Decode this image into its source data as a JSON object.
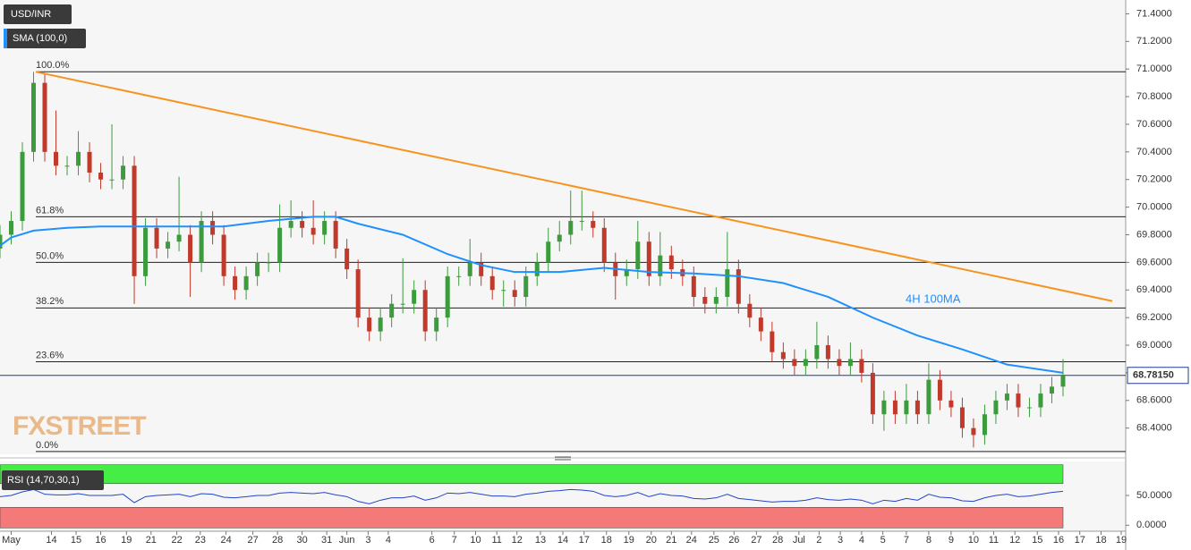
{
  "chart_data": {
    "type": "candlestick",
    "title": "USD/INR",
    "up_color": "#3c9b3c",
    "down_color": "#c0392b",
    "xlim": [
      0,
      100.6
    ],
    "xticks": [
      {
        "value": 1.0,
        "label": "May"
      },
      {
        "value": 4.6,
        "label": "14"
      },
      {
        "value": 6.8,
        "label": "15"
      },
      {
        "value": 9.0,
        "label": "16"
      },
      {
        "value": 11.3,
        "label": "19"
      },
      {
        "value": 13.5,
        "label": "21"
      },
      {
        "value": 15.8,
        "label": "22"
      },
      {
        "value": 17.9,
        "label": "23"
      },
      {
        "value": 20.2,
        "label": "24"
      },
      {
        "value": 22.6,
        "label": "27"
      },
      {
        "value": 24.8,
        "label": "28"
      },
      {
        "value": 27.0,
        "label": "30"
      },
      {
        "value": 29.2,
        "label": "31"
      },
      {
        "value": 31.0,
        "label": "Jun"
      },
      {
        "value": 32.9,
        "label": "3"
      },
      {
        "value": 34.7,
        "label": "4"
      },
      {
        "value": 38.6,
        "label": "6"
      },
      {
        "value": 40.6,
        "label": "7"
      },
      {
        "value": 42.5,
        "label": "10"
      },
      {
        "value": 44.4,
        "label": "11"
      },
      {
        "value": 46.2,
        "label": "12"
      },
      {
        "value": 48.3,
        "label": "13"
      },
      {
        "value": 50.3,
        "label": "14"
      },
      {
        "value": 52.2,
        "label": "17"
      },
      {
        "value": 54.2,
        "label": "18"
      },
      {
        "value": 56.2,
        "label": "19"
      },
      {
        "value": 58.2,
        "label": "20"
      },
      {
        "value": 60.0,
        "label": "21"
      },
      {
        "value": 61.8,
        "label": "24"
      },
      {
        "value": 63.8,
        "label": "25"
      },
      {
        "value": 65.6,
        "label": "26"
      },
      {
        "value": 67.6,
        "label": "27"
      },
      {
        "value": 69.5,
        "label": "28"
      },
      {
        "value": 71.4,
        "label": "Jul"
      },
      {
        "value": 73.2,
        "label": "2"
      },
      {
        "value": 75.1,
        "label": "3"
      },
      {
        "value": 77.0,
        "label": "4"
      },
      {
        "value": 78.9,
        "label": "5"
      },
      {
        "value": 81.0,
        "label": "7"
      },
      {
        "value": 83.0,
        "label": "8"
      },
      {
        "value": 85.0,
        "label": "9"
      },
      {
        "value": 87.0,
        "label": "10"
      },
      {
        "value": 88.8,
        "label": "11"
      },
      {
        "value": 90.7,
        "label": "12"
      },
      {
        "value": 92.7,
        "label": "15"
      },
      {
        "value": 94.6,
        "label": "16"
      },
      {
        "value": 96.5,
        "label": "17"
      },
      {
        "value": 98.4,
        "label": "18"
      },
      {
        "value": 100.2,
        "label": "19"
      }
    ],
    "ylim": [
      68.21,
      71.5
    ],
    "yticks": [
      {
        "value": 71.4,
        "label": "71.4000"
      },
      {
        "value": 71.2,
        "label": "71.2000"
      },
      {
        "value": 71.0,
        "label": "71.0000"
      },
      {
        "value": 70.8,
        "label": "70.8000"
      },
      {
        "value": 70.6,
        "label": "70.6000"
      },
      {
        "value": 70.4,
        "label": "70.4000"
      },
      {
        "value": 70.2,
        "label": "70.2000"
      },
      {
        "value": 70.0,
        "label": "70.0000"
      },
      {
        "value": 69.8,
        "label": "69.8000"
      },
      {
        "value": 69.6,
        "label": "69.6000"
      },
      {
        "value": 69.4,
        "label": "69.4000"
      },
      {
        "value": 69.2,
        "label": "69.2000"
      },
      {
        "value": 69.0,
        "label": "69.0000"
      },
      {
        "value": 68.8,
        "label": "68.8000"
      },
      {
        "value": 68.6,
        "label": "68.6000"
      },
      {
        "value": 68.4,
        "label": "68.4000"
      }
    ],
    "last_price": {
      "value": 68.7815,
      "label": "68.78150"
    },
    "open": [
      69.7,
      69.8,
      69.9,
      70.4,
      70.9,
      70.4,
      70.3,
      70.3,
      70.4,
      70.25,
      70.2,
      70.2,
      70.3,
      69.5,
      69.85,
      69.7,
      69.75,
      69.8,
      69.6,
      69.9,
      69.8,
      69.5,
      69.4,
      69.5,
      69.6,
      69.6,
      69.85,
      69.9,
      69.85,
      69.8,
      69.9,
      69.7,
      69.55,
      69.2,
      69.1,
      69.2,
      69.3,
      69.3,
      69.4,
      69.1,
      69.2,
      69.5,
      69.5,
      69.6,
      69.5,
      69.4,
      69.4,
      69.35,
      69.5,
      69.6,
      69.75,
      69.8,
      69.9,
      69.9,
      69.85,
      69.6,
      69.5,
      69.55,
      69.75,
      69.5,
      69.65,
      69.55,
      69.5,
      69.35,
      69.3,
      69.35,
      69.55,
      69.3,
      69.2,
      69.1,
      68.95,
      68.9,
      68.85,
      68.9,
      69.0,
      68.9,
      68.85,
      68.9,
      68.8,
      68.5,
      68.6,
      68.5,
      68.6,
      68.5,
      68.75,
      68.6,
      68.55,
      68.4,
      68.35,
      68.5,
      68.6,
      68.65,
      68.55,
      68.55,
      68.65,
      68.7
    ],
    "high": [
      69.87,
      69.97,
      70.47,
      70.98,
      70.97,
      70.7,
      70.37,
      70.55,
      70.47,
      70.32,
      70.6,
      70.37,
      70.37,
      69.92,
      69.92,
      69.82,
      70.22,
      69.87,
      69.97,
      69.97,
      69.87,
      69.57,
      69.57,
      69.67,
      69.67,
      70.02,
      70.05,
      69.97,
      70.05,
      69.97,
      69.97,
      69.77,
      69.62,
      69.27,
      69.27,
      69.37,
      69.63,
      69.47,
      69.47,
      69.27,
      69.57,
      69.57,
      69.77,
      69.67,
      69.57,
      69.47,
      69.47,
      69.57,
      69.67,
      69.85,
      69.9,
      70.12,
      70.12,
      69.97,
      69.92,
      69.67,
      69.62,
      69.9,
      69.82,
      69.82,
      69.72,
      69.62,
      69.57,
      69.42,
      69.42,
      69.82,
      69.62,
      69.37,
      69.27,
      69.17,
      69.02,
      68.97,
      68.97,
      69.17,
      69.07,
      68.97,
      69.02,
      68.97,
      68.87,
      68.67,
      68.67,
      68.72,
      68.67,
      68.87,
      68.82,
      68.67,
      68.62,
      68.47,
      68.57,
      68.67,
      68.72,
      68.72,
      68.62,
      68.72,
      68.77,
      68.9
    ],
    "low": [
      69.63,
      69.73,
      69.83,
      70.33,
      70.33,
      70.23,
      70.23,
      70.23,
      70.18,
      70.13,
      70.13,
      70.13,
      69.3,
      69.43,
      69.63,
      69.63,
      69.68,
      69.35,
      69.53,
      69.73,
      69.43,
      69.33,
      69.33,
      69.43,
      69.53,
      69.53,
      69.78,
      69.78,
      69.73,
      69.73,
      69.63,
      69.48,
      69.13,
      69.03,
      69.03,
      69.13,
      69.23,
      69.23,
      69.03,
      69.03,
      69.13,
      69.43,
      69.43,
      69.43,
      69.33,
      69.28,
      69.28,
      69.28,
      69.43,
      69.53,
      69.68,
      69.73,
      69.83,
      69.78,
      69.53,
      69.33,
      69.43,
      69.48,
      69.43,
      69.43,
      69.48,
      69.43,
      69.28,
      69.23,
      69.23,
      69.28,
      69.23,
      69.13,
      69.03,
      68.88,
      68.83,
      68.78,
      68.78,
      68.83,
      68.83,
      68.78,
      68.78,
      68.73,
      68.43,
      68.38,
      68.43,
      68.43,
      68.43,
      68.43,
      68.53,
      68.48,
      68.33,
      68.26,
      68.28,
      68.43,
      68.53,
      68.48,
      68.48,
      68.48,
      68.58,
      68.63
    ],
    "close": [
      69.8,
      69.9,
      70.4,
      70.9,
      70.4,
      70.3,
      70.3,
      70.4,
      70.25,
      70.2,
      70.2,
      70.3,
      69.5,
      69.85,
      69.7,
      69.75,
      69.8,
      69.6,
      69.9,
      69.8,
      69.5,
      69.4,
      69.5,
      69.6,
      69.6,
      69.85,
      69.9,
      69.85,
      69.8,
      69.9,
      69.7,
      69.55,
      69.2,
      69.1,
      69.2,
      69.3,
      69.3,
      69.4,
      69.1,
      69.2,
      69.5,
      69.5,
      69.6,
      69.5,
      69.4,
      69.4,
      69.35,
      69.5,
      69.6,
      69.75,
      69.8,
      69.9,
      69.9,
      69.85,
      69.6,
      69.5,
      69.55,
      69.75,
      69.5,
      69.65,
      69.55,
      69.5,
      69.35,
      69.3,
      69.35,
      69.55,
      69.3,
      69.2,
      69.1,
      68.95,
      68.9,
      68.85,
      68.9,
      69.0,
      68.9,
      68.85,
      68.9,
      68.8,
      68.5,
      68.6,
      68.5,
      68.6,
      68.5,
      68.75,
      68.6,
      68.55,
      68.4,
      68.35,
      68.5,
      68.6,
      68.65,
      68.55,
      68.55,
      68.65,
      68.7,
      68.78
    ],
    "sma": {
      "name": "SMA (100,0)",
      "color": "#1e90ff",
      "x": [
        0,
        1,
        3,
        6,
        9,
        12,
        16,
        20,
        24,
        28,
        30,
        32,
        36,
        40,
        43,
        46,
        50,
        54,
        58,
        62,
        66,
        70,
        74,
        78,
        82,
        86,
        90,
        95
      ],
      "values": [
        69.72,
        69.78,
        69.83,
        69.85,
        69.86,
        69.86,
        69.86,
        69.86,
        69.9,
        69.93,
        69.93,
        69.88,
        69.8,
        69.66,
        69.58,
        69.53,
        69.53,
        69.56,
        69.53,
        69.52,
        69.5,
        69.45,
        69.35,
        69.2,
        69.07,
        68.97,
        68.86,
        68.8
      ]
    },
    "sma_annotation": "4H 100MA",
    "trendline": {
      "color": "#f7931e",
      "x": [
        3.2,
        99.4
      ],
      "values": [
        70.98,
        69.32
      ]
    },
    "fib_start": 3.2,
    "fib_levels": [
      {
        "label": "100.0%",
        "value": 70.98
      },
      {
        "label": "61.8%",
        "value": 69.93
      },
      {
        "label": "50.0%",
        "value": 69.6
      },
      {
        "label": "38.2%",
        "value": 69.27
      },
      {
        "label": "23.6%",
        "value": 68.88
      },
      {
        "label": "0.0%",
        "value": 68.23
      }
    ],
    "watermark": "FXSTREET",
    "rsi": {
      "name": "RSI (14,70,30,1)",
      "color": "#2244cc",
      "overbought": 70,
      "oversold": 30,
      "ylim": [
        -4.5,
        101.5
      ],
      "yticks": [
        {
          "value": 50,
          "label": "50.0000"
        },
        {
          "value": 0,
          "label": "0.0000"
        }
      ],
      "values": [
        48,
        50,
        56,
        60,
        52,
        51,
        51,
        53,
        50,
        50,
        50,
        52,
        38,
        48,
        50,
        51,
        52,
        48,
        53,
        52,
        47,
        46,
        48,
        50,
        50,
        54,
        55,
        54,
        53,
        55,
        51,
        48,
        40,
        36,
        42,
        46,
        46,
        49,
        42,
        46,
        54,
        53,
        55,
        52,
        49,
        49,
        48,
        52,
        54,
        57,
        58,
        60,
        59,
        57,
        50,
        48,
        50,
        55,
        48,
        53,
        50,
        49,
        45,
        44,
        46,
        52,
        45,
        43,
        41,
        39,
        40,
        40,
        42,
        46,
        43,
        42,
        44,
        42,
        36,
        42,
        40,
        45,
        42,
        52,
        47,
        46,
        41,
        40,
        46,
        50,
        52,
        48,
        49,
        52,
        55,
        57
      ]
    }
  }
}
